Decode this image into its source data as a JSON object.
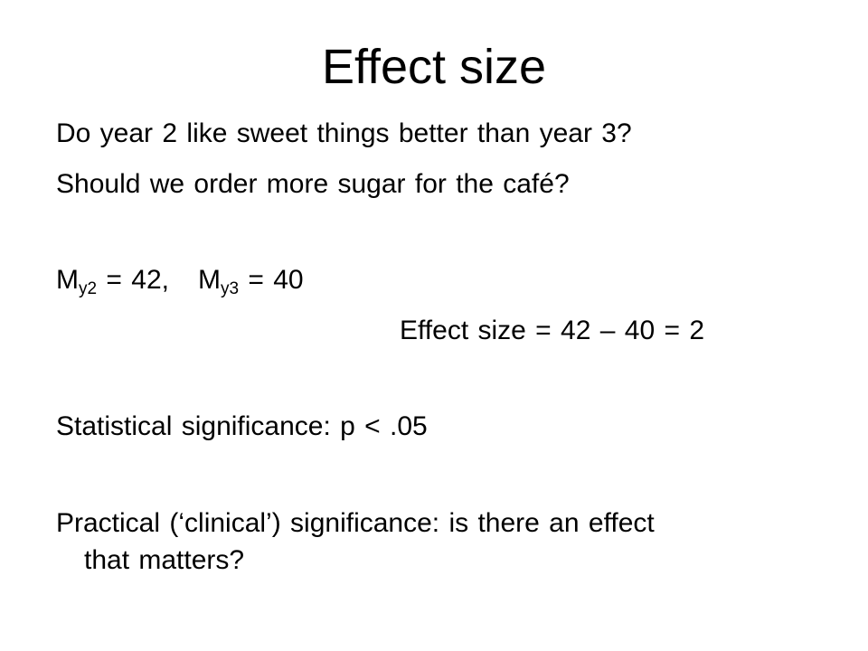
{
  "slide": {
    "title": "Effect size",
    "q1": "Do year 2 like sweet things better than year 3?",
    "q2": "Should we order more sugar for the café?",
    "means": {
      "m_letter_1": "M",
      "m_sub_1": "y2",
      "m_val_1": " = 42,",
      "m_letter_2": "M",
      "m_sub_2": "y3",
      "m_val_2": " = 40"
    },
    "effect": "Effect size = 42 – 40 = 2",
    "stat_sig": "Statistical significance: p < .05",
    "practical_1": "Practical (‘clinical’) significance: is there an effect",
    "practical_2": "that matters?"
  }
}
